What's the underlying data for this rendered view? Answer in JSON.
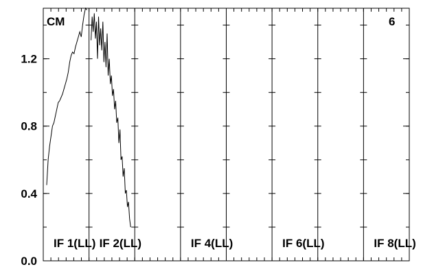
{
  "chart_data": {
    "type": "line",
    "title": "",
    "xlabel": "",
    "ylabel": "",
    "ylim": [
      0,
      1.5
    ],
    "yticks": [
      0.0,
      0.4,
      0.8,
      1.2
    ],
    "ytick_labels": [
      "0.0",
      "0.4",
      "0.8",
      "1.2"
    ],
    "grid": false,
    "corner_labels": {
      "left": "CM",
      "right": "6"
    },
    "panel_labels": [
      "IF 1(LL)",
      "IF 2(LL)",
      "IF 4(LL)",
      "IF 6(LL)",
      "IF 8(LL)"
    ],
    "panel_count": 8,
    "series": [
      {
        "values": [
          0.45,
          0.6,
          0.68,
          0.74,
          0.8,
          0.82,
          0.86,
          0.9,
          0.94,
          0.95,
          0.97,
          0.99,
          1.02,
          1.05,
          1.08,
          1.12,
          1.18,
          1.22,
          1.24,
          1.23,
          1.27,
          1.3,
          1.33,
          1.36,
          1.33,
          1.4,
          1.46,
          1.5,
          1.49
        ]
      },
      {
        "values": [
          1.31,
          1.45,
          1.36,
          1.47,
          1.32,
          1.42,
          1.2,
          1.45,
          1.28,
          1.38,
          1.25,
          1.42,
          1.18,
          1.3,
          1.15,
          1.35,
          1.1,
          1.2,
          1.05,
          1.1,
          0.98,
          1.02,
          0.9,
          0.95,
          0.82,
          0.85,
          0.7,
          0.78,
          0.6,
          0.62,
          0.5,
          0.55,
          0.4,
          0.42,
          0.32,
          0.35,
          0.25,
          0.2
        ]
      }
    ]
  }
}
